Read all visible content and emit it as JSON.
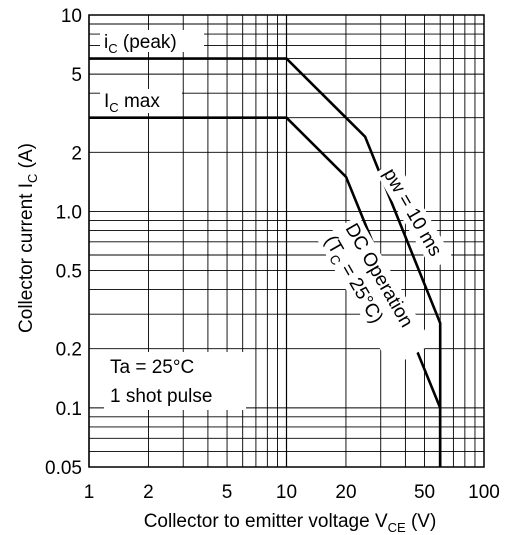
{
  "chart_data": {
    "type": "line",
    "x_scale": "log",
    "y_scale": "log",
    "xlim": [
      1,
      100
    ],
    "ylim": [
      0.05,
      10
    ],
    "grid": true,
    "xlabel": {
      "main": "Collector to emitter voltage  V",
      "sub": "CE",
      "unit": " (V)"
    },
    "ylabel": {
      "main": "Collector current  I",
      "sub": "C",
      "unit": " (A)"
    },
    "x_ticks": [
      {
        "value": 1,
        "label": "1"
      },
      {
        "value": 2,
        "label": "2"
      },
      {
        "value": 5,
        "label": "5"
      },
      {
        "value": 10,
        "label": "10"
      },
      {
        "value": 20,
        "label": "20"
      },
      {
        "value": 50,
        "label": "50"
      },
      {
        "value": 100,
        "label": "100"
      }
    ],
    "y_ticks": [
      {
        "value": 10,
        "label": "10"
      },
      {
        "value": 5,
        "label": "5"
      },
      {
        "value": 2,
        "label": "2"
      },
      {
        "value": 1,
        "label": "1.0"
      },
      {
        "value": 0.5,
        "label": "0.5"
      },
      {
        "value": 0.2,
        "label": "0.2"
      },
      {
        "value": 0.1,
        "label": "0.1"
      },
      {
        "value": 0.05,
        "label": "0.05"
      }
    ],
    "series": [
      {
        "name": "pw = 10 ms",
        "x": [
          1,
          10,
          25,
          60,
          60
        ],
        "y": [
          6,
          6,
          2.4,
          0.27,
          0.05
        ]
      },
      {
        "name": "DC Operation (TC = 25°C)",
        "x": [
          1,
          10,
          20,
          60,
          60
        ],
        "y": [
          3,
          3,
          1.5,
          0.1,
          0.05
        ]
      }
    ],
    "annotations": {
      "ic_peak": {
        "main": "i",
        "sub": "C",
        "tail": " (peak)"
      },
      "ic_max": {
        "main": "I",
        "sub": "C",
        "tail": " max"
      },
      "pw_label": "pw = 10 ms",
      "dc_line1": "DC Operation",
      "dc_line2": {
        "main": "(T",
        "sub": "C",
        "tail": " = 25°C)"
      },
      "ta_label": "Ta = 25°C",
      "shot_label": "1 shot pulse"
    }
  }
}
